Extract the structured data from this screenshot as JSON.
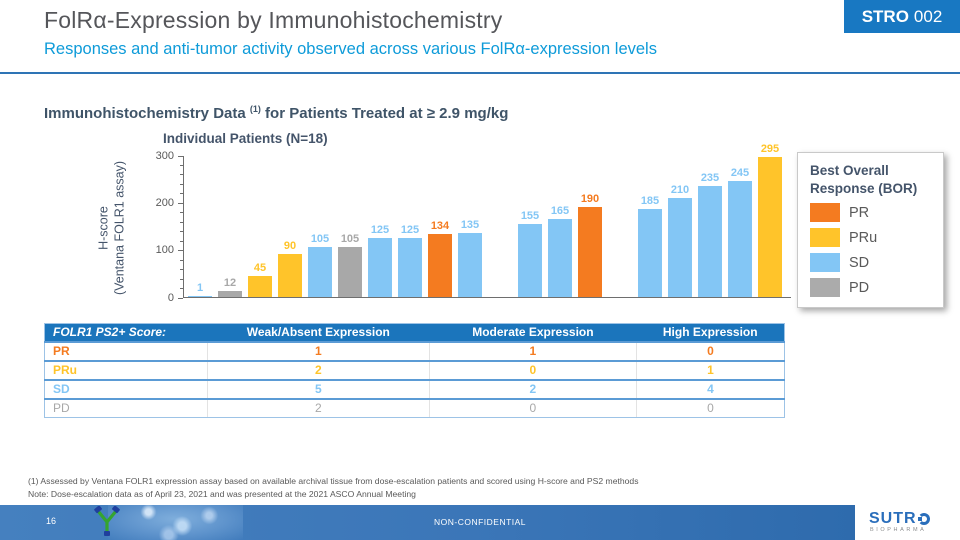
{
  "header": {
    "title": "FolRα-Expression by Immunohistochemistry",
    "subtitle": "Responses and anti-tumor activity observed across various FolRα-expression levels",
    "badge_brand": "STRO",
    "badge_number": "002"
  },
  "section": {
    "heading_pre": "Immunohistochemistry Data ",
    "heading_sup": "(1)",
    "heading_post": " for Patients Treated at ≥ 2.9 mg/kg"
  },
  "chart_data": {
    "type": "bar",
    "title": "Individual Patients (N=18)",
    "ylabel_line1": "H-score",
    "ylabel_line2": "(Ventana FOLR1 assay)",
    "ylim": [
      0,
      300
    ],
    "yticks": [
      0,
      100,
      200,
      300
    ],
    "minor_tick_step": 20,
    "grid": false,
    "legend_position": "right",
    "group_names": [
      "Weak/Absent Expression",
      "Moderate Expression",
      "High Expression"
    ],
    "bars": [
      {
        "value": 1,
        "bor": "SD",
        "group": 0
      },
      {
        "value": 12,
        "bor": "PD",
        "group": 0
      },
      {
        "value": 45,
        "bor": "PRu",
        "group": 0
      },
      {
        "value": 90,
        "bor": "PRu",
        "group": 0
      },
      {
        "value": 105,
        "bor": "SD",
        "group": 0
      },
      {
        "value": 105,
        "bor": "PD",
        "group": 0
      },
      {
        "value": 125,
        "bor": "SD",
        "group": 0
      },
      {
        "value": 125,
        "bor": "SD",
        "group": 0
      },
      {
        "value": 134,
        "bor": "PR",
        "group": 0
      },
      {
        "value": 135,
        "bor": "SD",
        "group": 0
      },
      {
        "value": 155,
        "bor": "SD",
        "group": 1
      },
      {
        "value": 165,
        "bor": "SD",
        "group": 1
      },
      {
        "value": 190,
        "bor": "PR",
        "group": 1
      },
      {
        "value": 185,
        "bor": "SD",
        "group": 2
      },
      {
        "value": 210,
        "bor": "SD",
        "group": 2
      },
      {
        "value": 235,
        "bor": "SD",
        "group": 2
      },
      {
        "value": 245,
        "bor": "SD",
        "group": 2
      },
      {
        "value": 295,
        "bor": "PRu",
        "group": 2
      }
    ],
    "colors": {
      "PR": "#F47B20",
      "PRu": "#FFC42A",
      "SD": "#83C6F5",
      "PD": "#A8A8A8"
    }
  },
  "legend": {
    "title": "Best Overall Response (BOR)",
    "items": [
      {
        "label": "PR",
        "color": "#F47B20"
      },
      {
        "label": "PRu",
        "color": "#FFC42A"
      },
      {
        "label": "SD",
        "color": "#83C6F5"
      },
      {
        "label": "PD",
        "color": "#ABABAB"
      }
    ]
  },
  "table": {
    "header": [
      "FOLR1 PS2+ Score:",
      "Weak/Absent Expression",
      "Moderate Expression",
      "High Expression"
    ],
    "rows": [
      {
        "label": "PR",
        "color": "#F47B20",
        "bold": true,
        "values": [
          "1",
          "1",
          "0"
        ]
      },
      {
        "label": "PRu",
        "color": "#FFC42A",
        "bold": true,
        "values": [
          "2",
          "0",
          "1"
        ]
      },
      {
        "label": "SD",
        "color": "#83C6F5",
        "bold": true,
        "values": [
          "5",
          "2",
          "4"
        ]
      },
      {
        "label": "PD",
        "color": "#A8A8A8",
        "bold": false,
        "values": [
          "2",
          "0",
          "0"
        ]
      }
    ]
  },
  "footnotes": [
    "(1) Assessed by Ventana FOLR1 expression assay based on available archival tissue from dose-escalation patients and scored using H-score and PS2 methods",
    "Note: Dose-escalation data as of April 23, 2021 and was presented at the 2021 ASCO Annual Meeting"
  ],
  "footer": {
    "page": "16",
    "classification": "NON-CONFIDENTIAL",
    "logo_brand": "SUTR",
    "logo_sub": "BIOPHARMA"
  }
}
